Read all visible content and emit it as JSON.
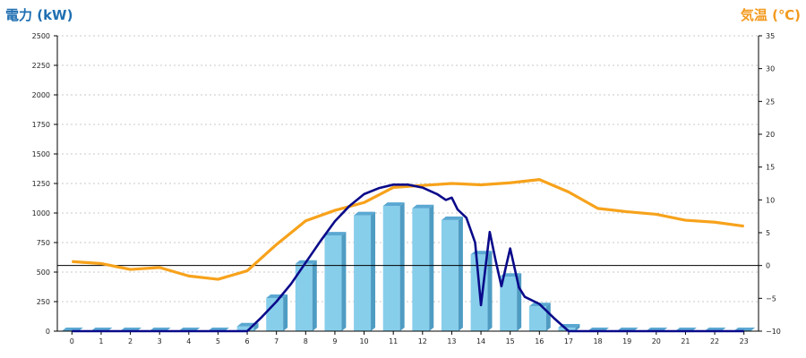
{
  "chart_data": {
    "type": "bar",
    "title_left": "電力 (kW)",
    "title_right": "気温 (℃)",
    "categories": [
      "0",
      "1",
      "2",
      "3",
      "4",
      "5",
      "6",
      "7",
      "8",
      "9",
      "10",
      "11",
      "12",
      "13",
      "14",
      "15",
      "16",
      "17",
      "18",
      "19",
      "20",
      "21",
      "22",
      "23"
    ],
    "y_left": {
      "min": 0,
      "max": 2500,
      "ticks": [
        "0",
        "250",
        "500",
        "750",
        "1000",
        "1250",
        "1500",
        "1750",
        "2000",
        "2250",
        "2500"
      ]
    },
    "y_right": {
      "min": -10,
      "max": 35,
      "ticks": [
        "−10",
        "−5",
        "0",
        "5",
        "10",
        "15",
        "20",
        "25",
        "30",
        "35"
      ],
      "tick_values": [
        -10,
        -5,
        0,
        5,
        10,
        15,
        20,
        25,
        30,
        35
      ]
    },
    "grid": true,
    "bars": {
      "color": "#87ceeb",
      "values": [
        0,
        0,
        0,
        0,
        0,
        0,
        40,
        280,
        570,
        810,
        980,
        1060,
        1040,
        940,
        650,
        460,
        210,
        30,
        0,
        0,
        0,
        0,
        0,
        0
      ]
    },
    "power_line": {
      "color": "#0a0a8a",
      "x": [
        0,
        6,
        6.5,
        7,
        7.5,
        8,
        8.5,
        9,
        9.5,
        10,
        10.5,
        11,
        11.5,
        12,
        12.5,
        12.8,
        13,
        13.2,
        13.5,
        13.8,
        14,
        14.3,
        14.5,
        14.7,
        15,
        15.3,
        15.5,
        16,
        16.5,
        17,
        23
      ],
      "y": [
        0,
        0,
        120,
        250,
        400,
        580,
        760,
        930,
        1060,
        1160,
        1210,
        1240,
        1240,
        1215,
        1160,
        1110,
        1130,
        1030,
        960,
        750,
        220,
        840,
        600,
        380,
        700,
        370,
        290,
        230,
        110,
        0,
        0
      ]
    },
    "temp_line": {
      "color": "#f7a21b",
      "x": [
        0,
        1,
        2,
        3,
        4,
        5,
        6,
        7,
        8,
        9,
        10,
        11,
        12,
        13,
        14,
        15,
        16,
        17,
        18,
        19,
        20,
        21,
        22,
        23
      ],
      "y": [
        0.6,
        0.3,
        -0.6,
        -0.3,
        -1.6,
        -2.1,
        -0.8,
        3.2,
        6.8,
        8.4,
        9.6,
        11.9,
        12.2,
        12.5,
        12.3,
        12.6,
        13.1,
        11.2,
        8.7,
        8.2,
        7.8,
        6.9,
        6.6,
        6.0
      ]
    },
    "zero_line_right": 0
  }
}
